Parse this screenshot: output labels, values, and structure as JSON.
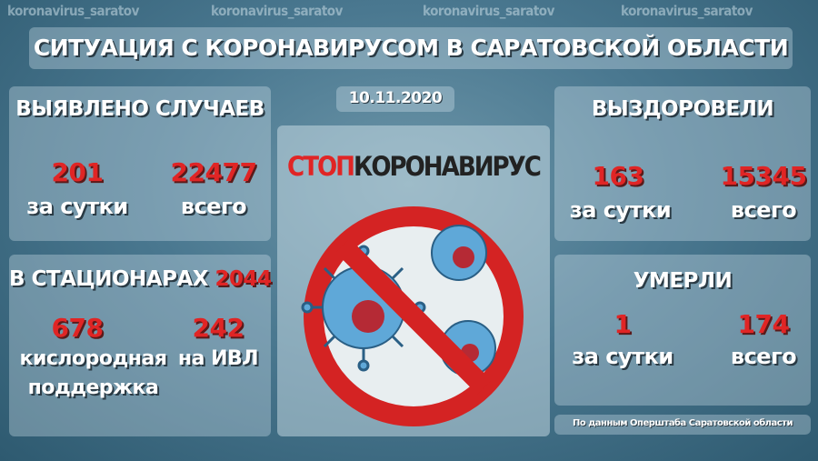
{
  "watermarks": [
    "koronavirus_saratov",
    "koronavirus_saratov",
    "koronavirus_saratov",
    "koronavirus_saratov"
  ],
  "title": "СИТУАЦИЯ С КОРОНАВИРУСОМ В САРАТОВСКОЙ ОБЛАСТИ",
  "date": "10.11.2020",
  "cases": {
    "heading": "ВЫЯВЛЕНО СЛУЧАЕВ",
    "daily": "201",
    "daily_label": "за сутки",
    "total": "22477",
    "total_label": "всего"
  },
  "hospital": {
    "heading": "В СТАЦИОНАРАХ",
    "count": "2044",
    "oxygen": "678",
    "oxygen_label_1": "кислородная",
    "oxygen_label_2": "поддержка",
    "ventilator": "242",
    "ventilator_label": "на ИВЛ"
  },
  "recovered": {
    "heading": "ВЫЗДОРОВЕЛИ",
    "daily": "163",
    "daily_label": "за сутки",
    "total": "15345",
    "total_label": "всего"
  },
  "died": {
    "heading": "УМЕРЛИ",
    "daily": "1",
    "daily_label": "за сутки",
    "total": "174",
    "total_label": "всего"
  },
  "center": {
    "stop": "СТОП",
    "word": "КОРОНАВИРУС"
  },
  "source": "По данным Оперштаба Саратовской области",
  "colors": {
    "accent": "#e02525",
    "text": "#ffffff"
  }
}
